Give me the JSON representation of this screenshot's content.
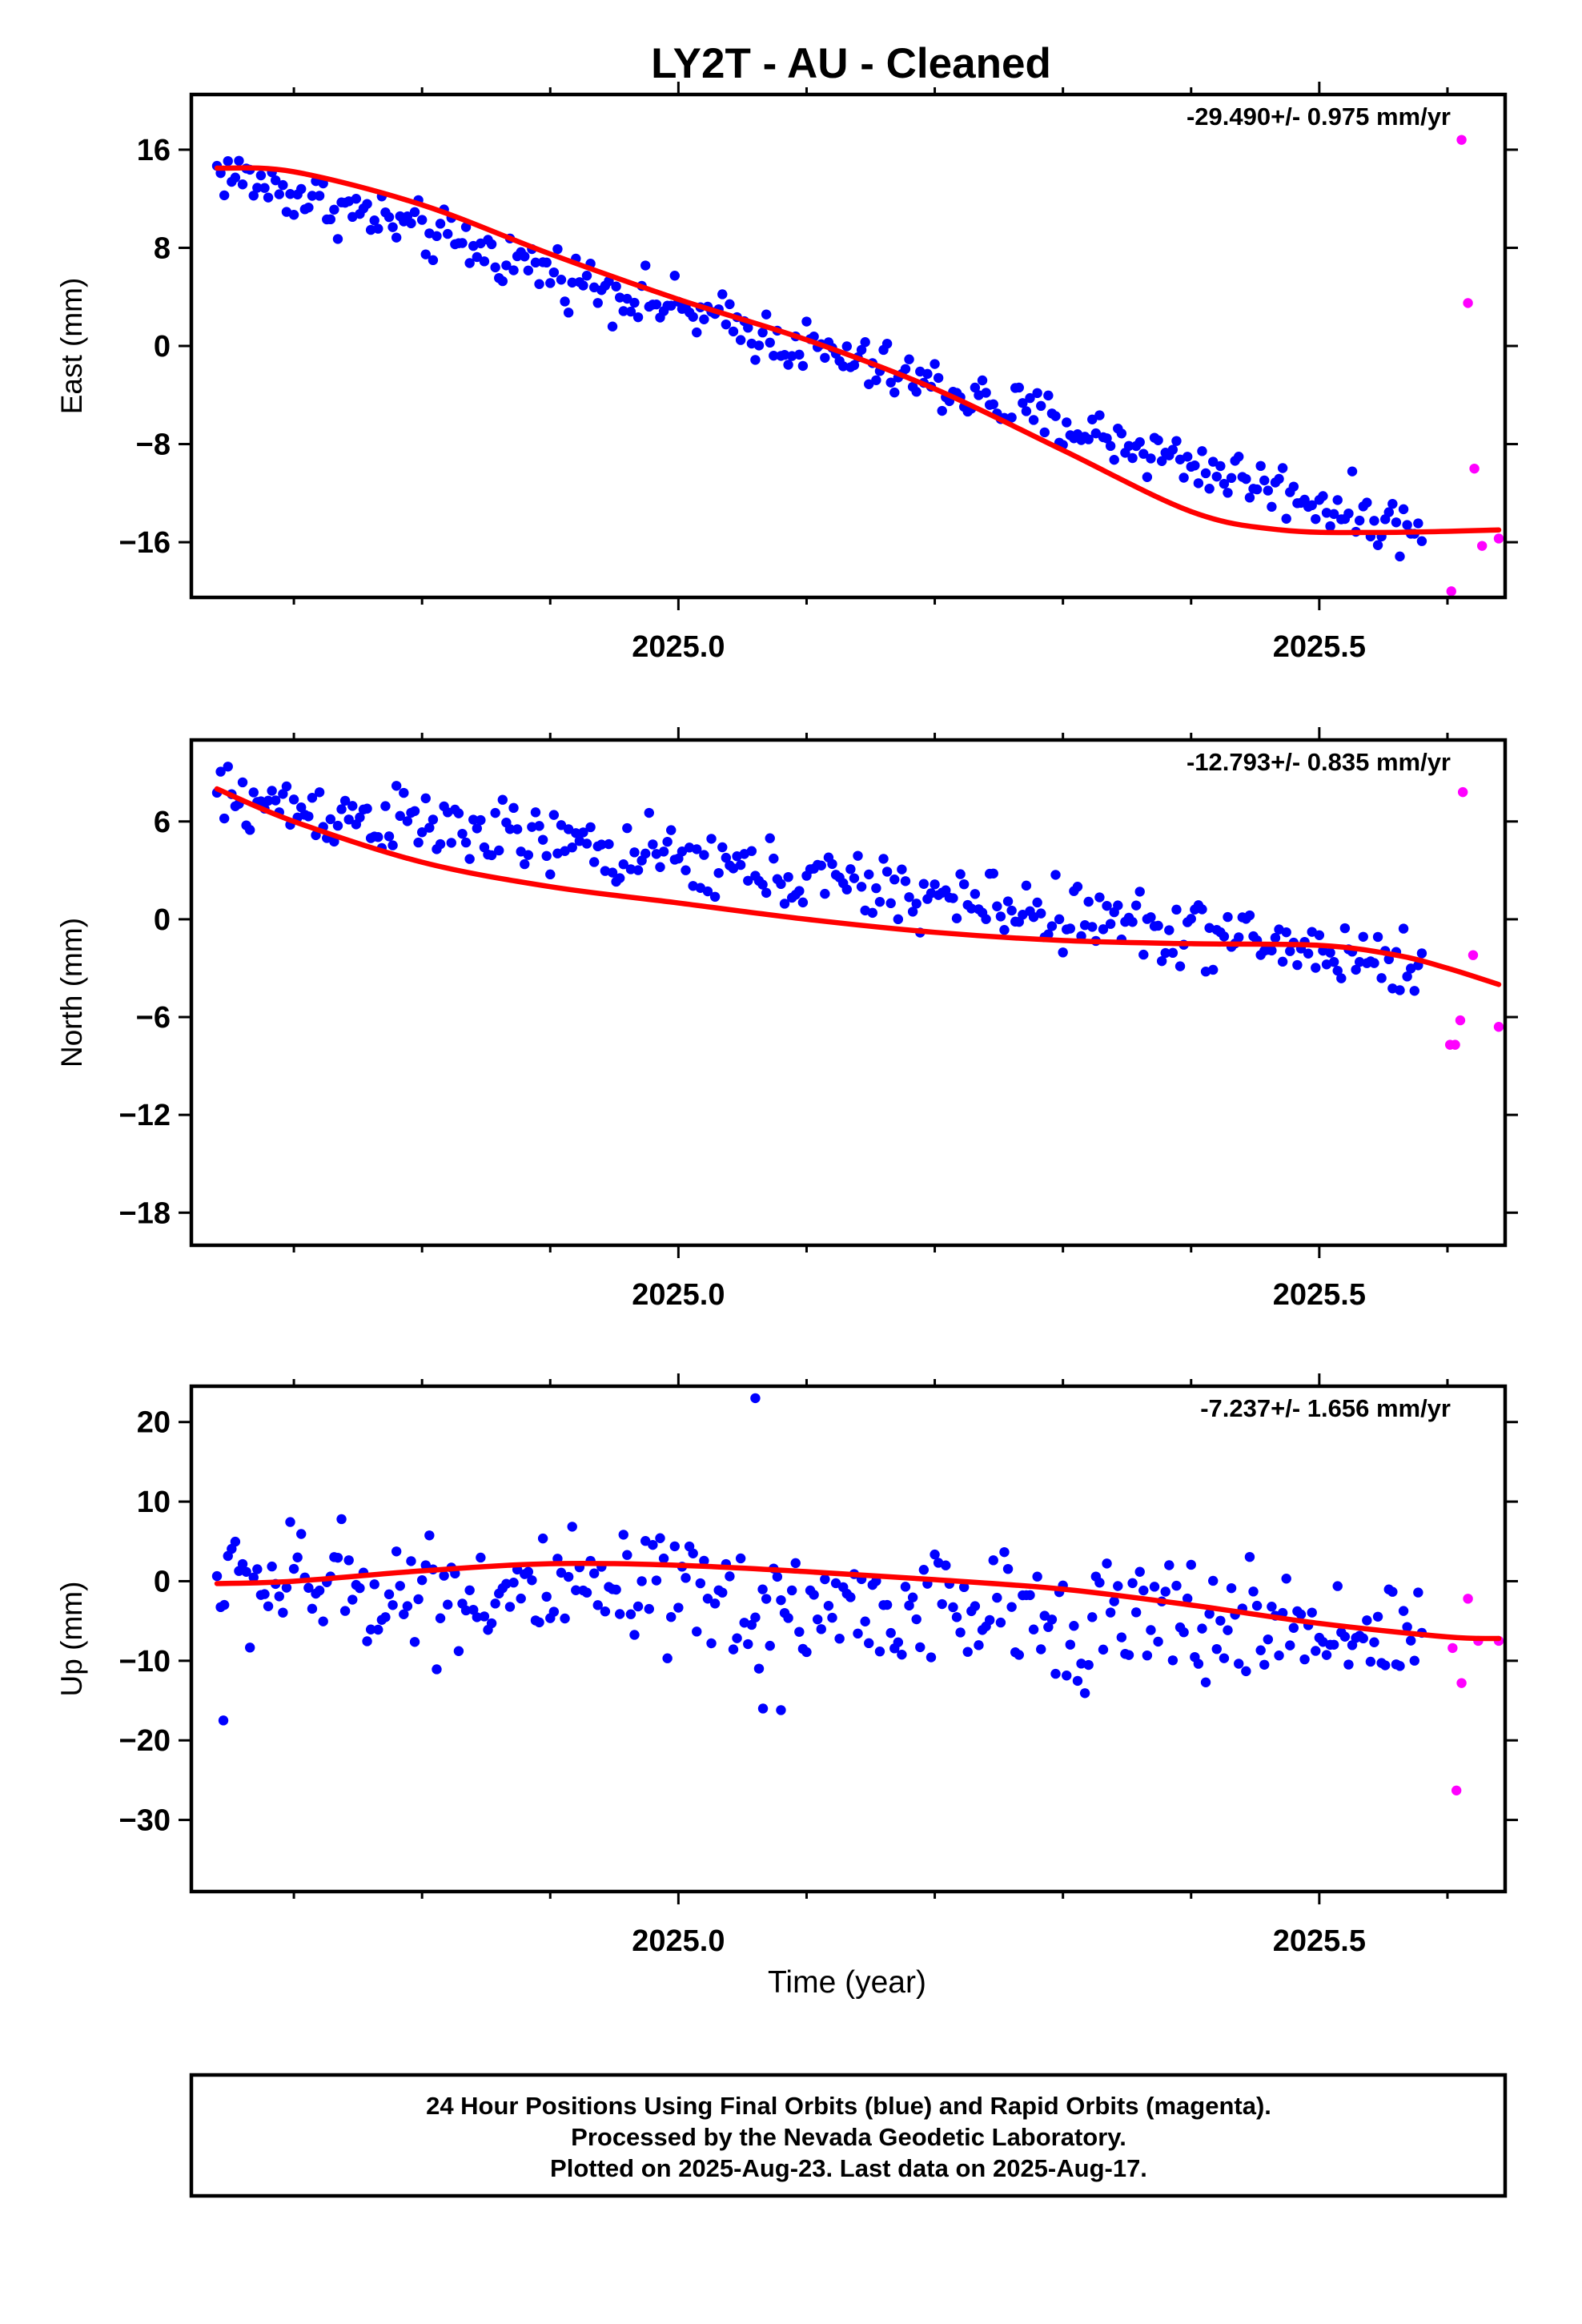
{
  "title": "LY2T  - AU - Cleaned",
  "xlabel": "Time (year)",
  "footer": {
    "lines": [
      "24 Hour Positions Using Final Orbits (blue) and Rapid Orbits (magenta).",
      "Processed by the Nevada Geodetic Laboratory.",
      "Plotted on 2025-Aug-23. Last data on 2025-Aug-17."
    ]
  },
  "colors": {
    "final": "#0000ff",
    "rapid": "#ff00ff",
    "fit": "#ff0000"
  },
  "chart_data": [
    {
      "type": "scatter",
      "ylabel": "East (mm)",
      "rate": "-29.490+/- 0.975 mm/yr",
      "xlim": [
        2024.62,
        2025.645
      ],
      "ylim": [
        -20.5,
        20.5
      ],
      "yticks": [
        16,
        8,
        0,
        -8,
        -16
      ],
      "ytick_labels": [
        "16",
        "8",
        "0",
        "−8",
        "−16"
      ],
      "xticks": [
        2025.0,
        2025.5
      ],
      "xtick_labels": [
        "2025.0",
        "2025.5"
      ],
      "xminor": [
        2024.7,
        2024.8,
        2024.9,
        2025.1,
        2025.2,
        2025.3,
        2025.4,
        2025.6
      ],
      "fit": {
        "x": [
          2024.64,
          2024.7,
          2024.8,
          2024.9,
          2025.0,
          2025.1,
          2025.2,
          2025.3,
          2025.4,
          2025.47,
          2025.55,
          2025.64
        ],
        "y": [
          14.5,
          14.2,
          11.5,
          7.5,
          3.8,
          0.5,
          -3.5,
          -8.5,
          -13.5,
          -15.0,
          -15.2,
          -15.0
        ]
      },
      "trend": {
        "x0": 2024.64,
        "x1": 2025.58,
        "y0": 14.3,
        "y1": -15.2,
        "scatter": 1.4
      },
      "rapid": {
        "x": [
          2025.603,
          2025.611,
          2025.616,
          2025.621,
          2025.627,
          2025.64
        ],
        "y": [
          -20.0,
          16.8,
          3.5,
          -10.0,
          -16.3,
          -15.7
        ]
      }
    },
    {
      "type": "scatter",
      "ylabel": "North (mm)",
      "rate": "-12.793+/- 0.835 mm/yr",
      "xlim": [
        2024.62,
        2025.645
      ],
      "ylim": [
        -20.0,
        11.0
      ],
      "yticks": [
        6,
        0,
        -6,
        -12,
        -18
      ],
      "ytick_labels": [
        "6",
        "0",
        "−6",
        "−12",
        "−18"
      ],
      "xticks": [
        2025.0,
        2025.5
      ],
      "xtick_labels": [
        "2025.0",
        "2025.5"
      ],
      "xminor": [
        2024.7,
        2024.8,
        2024.9,
        2025.1,
        2025.2,
        2025.3,
        2025.4,
        2025.6
      ],
      "fit": {
        "x": [
          2024.64,
          2024.7,
          2024.8,
          2024.9,
          2025.0,
          2025.1,
          2025.2,
          2025.3,
          2025.4,
          2025.5,
          2025.56,
          2025.6,
          2025.64
        ],
        "y": [
          8.0,
          6.0,
          3.5,
          2.0,
          1.0,
          0.0,
          -0.8,
          -1.3,
          -1.5,
          -1.6,
          -2.2,
          -3.0,
          -4.0
        ]
      },
      "trend": {
        "x0": 2024.64,
        "x1": 2025.58,
        "y0": 7.5,
        "y1": -2.8,
        "scatter": 1.3
      },
      "rapid": {
        "x": [
          2025.602,
          2025.606,
          2025.61,
          2025.612,
          2025.62,
          2025.64
        ],
        "y": [
          -7.7,
          -7.7,
          -6.2,
          7.8,
          -2.2,
          -6.6
        ]
      }
    },
    {
      "type": "scatter",
      "ylabel": "Up (mm)",
      "rate": "-7.237+/- 1.656 mm/yr",
      "xlim": [
        2024.62,
        2025.645
      ],
      "ylim": [
        -39.0,
        24.5
      ],
      "yticks": [
        20,
        10,
        0,
        -10,
        -20,
        -30
      ],
      "ytick_labels": [
        "20",
        "10",
        "0",
        "−10",
        "−20",
        "−30"
      ],
      "xticks": [
        2025.0,
        2025.5
      ],
      "xtick_labels": [
        "2025.0",
        "2025.5"
      ],
      "xminor": [
        2024.7,
        2024.8,
        2024.9,
        2025.1,
        2025.2,
        2025.3,
        2025.4,
        2025.6
      ],
      "fit": {
        "x": [
          2024.64,
          2024.7,
          2024.8,
          2024.9,
          2025.0,
          2025.1,
          2025.2,
          2025.3,
          2025.4,
          2025.5,
          2025.6,
          2025.64
        ],
        "y": [
          -0.3,
          0.0,
          1.3,
          2.2,
          2.0,
          1.2,
          0.2,
          -1.0,
          -3.0,
          -5.3,
          -7.0,
          -7.2
        ]
      },
      "trend": {
        "x0": 2024.64,
        "x1": 2025.58,
        "y0": 0.0,
        "y1": -6.5,
        "scatter": 4.8
      },
      "rapid": {
        "x": [
          2025.604,
          2025.607,
          2025.611,
          2025.616,
          2025.624,
          2025.64
        ],
        "y": [
          -8.4,
          -26.3,
          -12.8,
          -2.2,
          -7.5,
          -7.5
        ]
      },
      "outliers": {
        "x": [
          2024.645,
          2025.06,
          2025.066,
          2025.08
        ],
        "y": [
          -17.5,
          23.0,
          -16.0,
          -16.2
        ]
      }
    }
  ]
}
